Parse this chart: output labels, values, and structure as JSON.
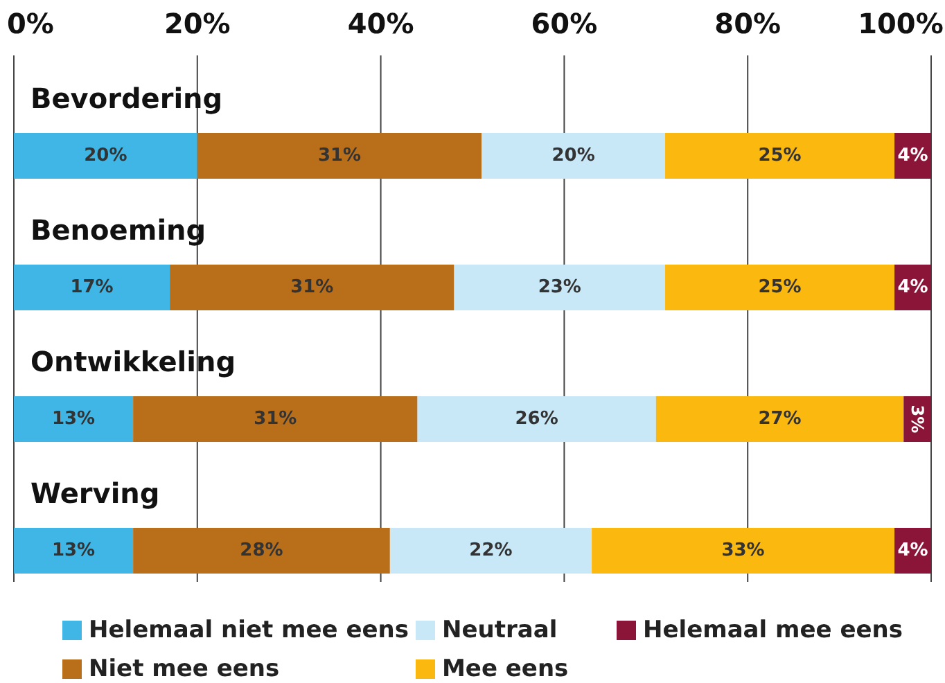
{
  "chart_data": {
    "type": "bar",
    "orientation": "horizontal",
    "stacked": true,
    "categories": [
      "Bevordering",
      "Benoeming",
      "Ontwikkeling",
      "Werving"
    ],
    "series": [
      {
        "name": "Helemaal niet mee eens",
        "color": "#3fb6e5",
        "values": [
          20,
          17,
          13,
          13
        ],
        "value_labels": [
          "20%",
          "17%",
          "13%",
          "13%"
        ]
      },
      {
        "name": "Niet mee eens",
        "color": "#b96e1a",
        "values": [
          31,
          31,
          31,
          28
        ],
        "value_labels": [
          "31%",
          "31%",
          "31%",
          "28%"
        ]
      },
      {
        "name": "Neutraal",
        "color": "#c8e7f7",
        "values": [
          20,
          23,
          26,
          22
        ],
        "value_labels": [
          "20%",
          "23%",
          "26%",
          "22%"
        ]
      },
      {
        "name": "Mee eens",
        "color": "#fbb80f",
        "values": [
          25,
          25,
          27,
          33
        ],
        "value_labels": [
          "25%",
          "25%",
          "27%",
          "33%"
        ]
      },
      {
        "name": "Helemaal mee eens",
        "color": "#8a1538",
        "values": [
          4,
          4,
          3,
          4
        ],
        "value_labels": [
          "4%",
          "4%",
          "3%",
          "4%"
        ]
      }
    ],
    "xlim": [
      0,
      100
    ],
    "xticks": [
      {
        "value": 0,
        "label": "0%"
      },
      {
        "value": 20,
        "label": "20%"
      },
      {
        "value": 40,
        "label": "40%"
      },
      {
        "value": 60,
        "label": "60%"
      },
      {
        "value": 80,
        "label": "80%"
      },
      {
        "value": 100,
        "label": "100%"
      }
    ],
    "grid": "x",
    "legend": "bottom"
  }
}
